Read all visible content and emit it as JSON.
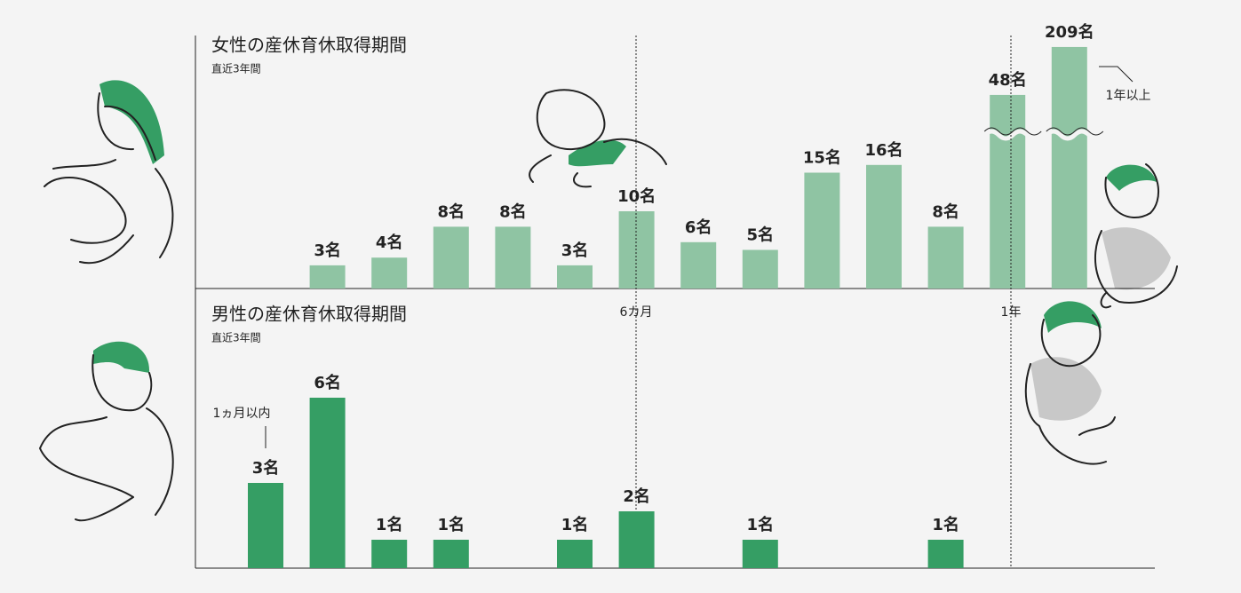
{
  "chart_data": [
    {
      "type": "bar",
      "title": "女性の産休育休取得期間",
      "subtitle": "直近3年間",
      "categories": [
        null,
        null,
        null,
        null,
        null,
        null,
        null,
        null,
        null,
        null,
        null,
        null,
        null,
        null
      ],
      "values": [
        null,
        3,
        4,
        8,
        8,
        3,
        10,
        6,
        5,
        15,
        16,
        8,
        48,
        209
      ],
      "value_labels": [
        null,
        "3名",
        "4名",
        "8名",
        "8名",
        "3名",
        "10名",
        "6名",
        "5名",
        "15名",
        "16名",
        "8名",
        "48名",
        "209名"
      ],
      "color": "#8fc4a3",
      "axis_break": true,
      "annotations": [
        "1年以上"
      ],
      "period_marks": [
        "6カ月",
        "1年"
      ]
    },
    {
      "type": "bar",
      "title": "男性の産休育休取得期間",
      "subtitle": "直近3年間",
      "categories": [
        null,
        null,
        null,
        null,
        null,
        null,
        null,
        null,
        null,
        null,
        null,
        null,
        null,
        null
      ],
      "values": [
        3,
        6,
        1,
        1,
        null,
        1,
        2,
        null,
        1,
        null,
        null,
        1,
        null,
        null
      ],
      "value_labels": [
        "3名",
        "6名",
        "1名",
        "1名",
        null,
        "1名",
        "2名",
        null,
        "1名",
        null,
        null,
        "1名",
        null,
        null
      ],
      "color": "#359e64",
      "axis_break": false,
      "annotations": [
        "1ヵ月以内"
      ]
    }
  ]
}
